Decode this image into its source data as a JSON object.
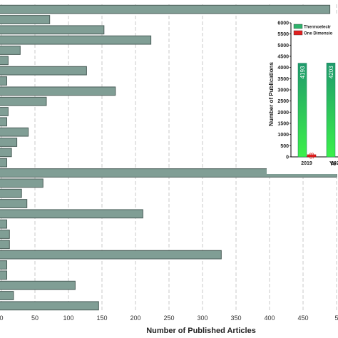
{
  "chart_data": [
    {
      "type": "bar",
      "orientation": "horizontal",
      "xlabel": "Number of Published Articles",
      "xlim": [
        0,
        500
      ],
      "x_ticks": [
        "0",
        "50",
        "100",
        "150",
        "200",
        "250",
        "300",
        "350",
        "400",
        "450",
        "5"
      ],
      "grid": true,
      "values": [
        490,
        72,
        153,
        223,
        28,
        10,
        127,
        8,
        170,
        67,
        10,
        8,
        40,
        23,
        15,
        8,
        500,
        62,
        30,
        38,
        211,
        8,
        12,
        12,
        328,
        8,
        8,
        110,
        18,
        145
      ]
    },
    {
      "type": "bar",
      "ylabel": "Number of Publications",
      "xlabel": "Ye",
      "ylim": [
        0,
        6000
      ],
      "y_ticks": [
        "0",
        "500",
        "1000",
        "1500",
        "2000",
        "2500",
        "3000",
        "3500",
        "4000",
        "4500",
        "5000",
        "5500",
        "6000"
      ],
      "categories": [
        "2019",
        "202"
      ],
      "series": [
        {
          "name": "Thermoelectr",
          "values": [
            4193,
            4203
          ],
          "labels": [
            "4193",
            "4203"
          ],
          "color": "#2db36b"
        },
        {
          "name": "One Dimensio",
          "values": [
            98,
            0
          ],
          "labels": [
            "98",
            ""
          ],
          "color": "#e02020"
        }
      ]
    }
  ]
}
